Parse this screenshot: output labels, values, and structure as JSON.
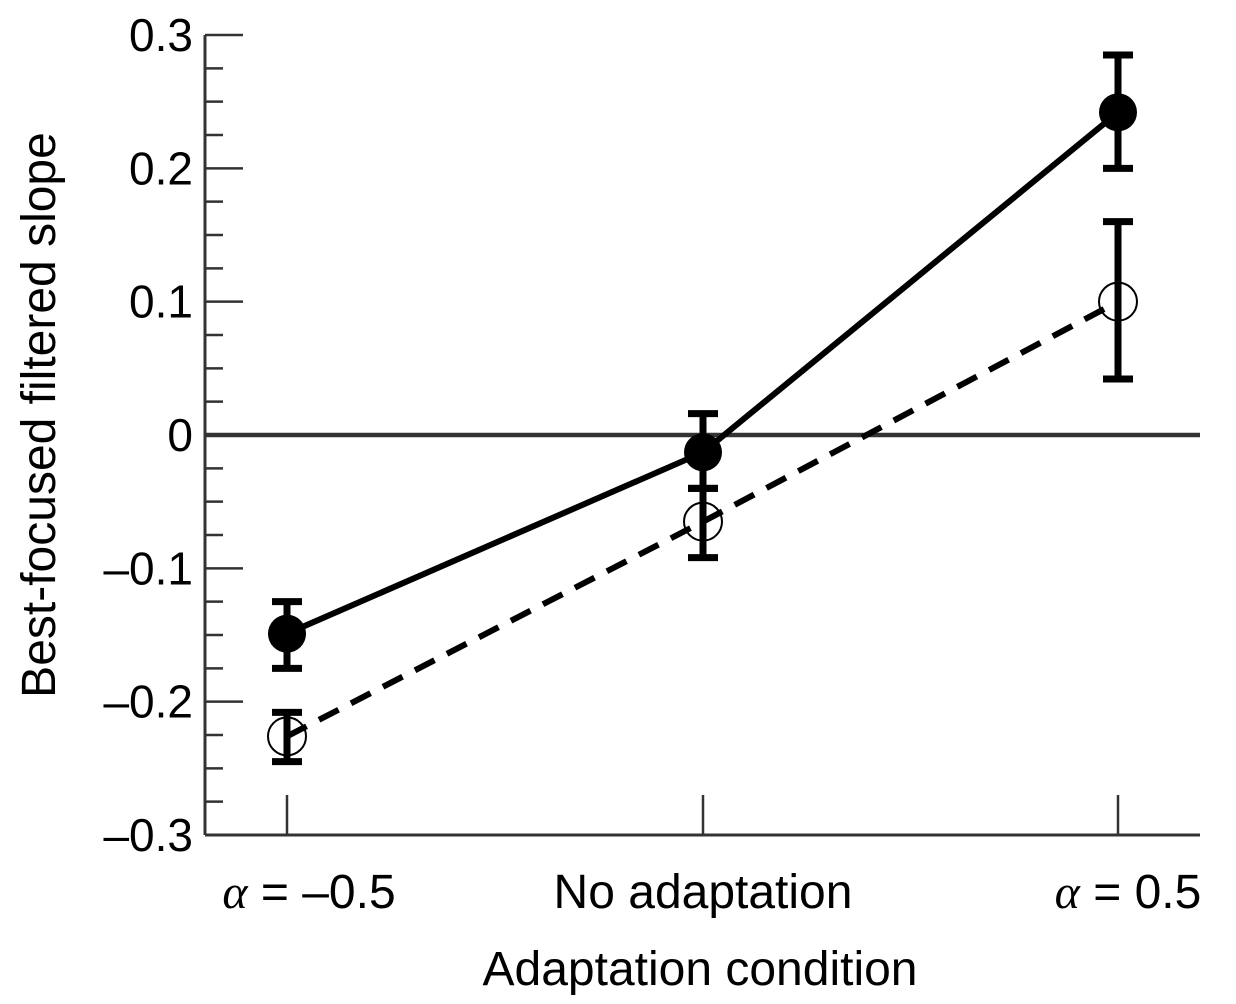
{
  "chart_data": {
    "type": "line",
    "title": "",
    "xlabel": "Adaptation condition",
    "ylabel": "Best-focused filtered slope",
    "categories": [
      {
        "prefix": "α",
        "text": " = –0.5"
      },
      {
        "prefix": "",
        "text": "No adaptation"
      },
      {
        "prefix": "α",
        "text": " = 0.5"
      }
    ],
    "ylim": [
      -0.3,
      0.3
    ],
    "yticks": [
      -0.3,
      -0.2,
      -0.1,
      0,
      0.1,
      0.2,
      0.3
    ],
    "ytick_labels": [
      "–0.3",
      "–0.2",
      "–0.1",
      "0",
      "0.1",
      "0.2",
      "0.3"
    ],
    "minor_tick_step": 0.025,
    "reference_line": 0,
    "grid": false,
    "legend": "none",
    "series": [
      {
        "style": "solid",
        "marker": "filled-circle",
        "color": "#000000",
        "values": [
          -0.149,
          -0.013,
          0.242
        ],
        "err_low": [
          -0.175,
          -0.04,
          0.2
        ],
        "err_high": [
          -0.125,
          0.016,
          0.285
        ]
      },
      {
        "style": "dashed",
        "marker": "open-circle",
        "color": "#000000",
        "values": [
          -0.226,
          -0.065,
          0.1
        ],
        "err_low": [
          -0.245,
          -0.092,
          0.042
        ],
        "err_high": [
          -0.208,
          -0.04,
          0.16
        ]
      }
    ]
  }
}
